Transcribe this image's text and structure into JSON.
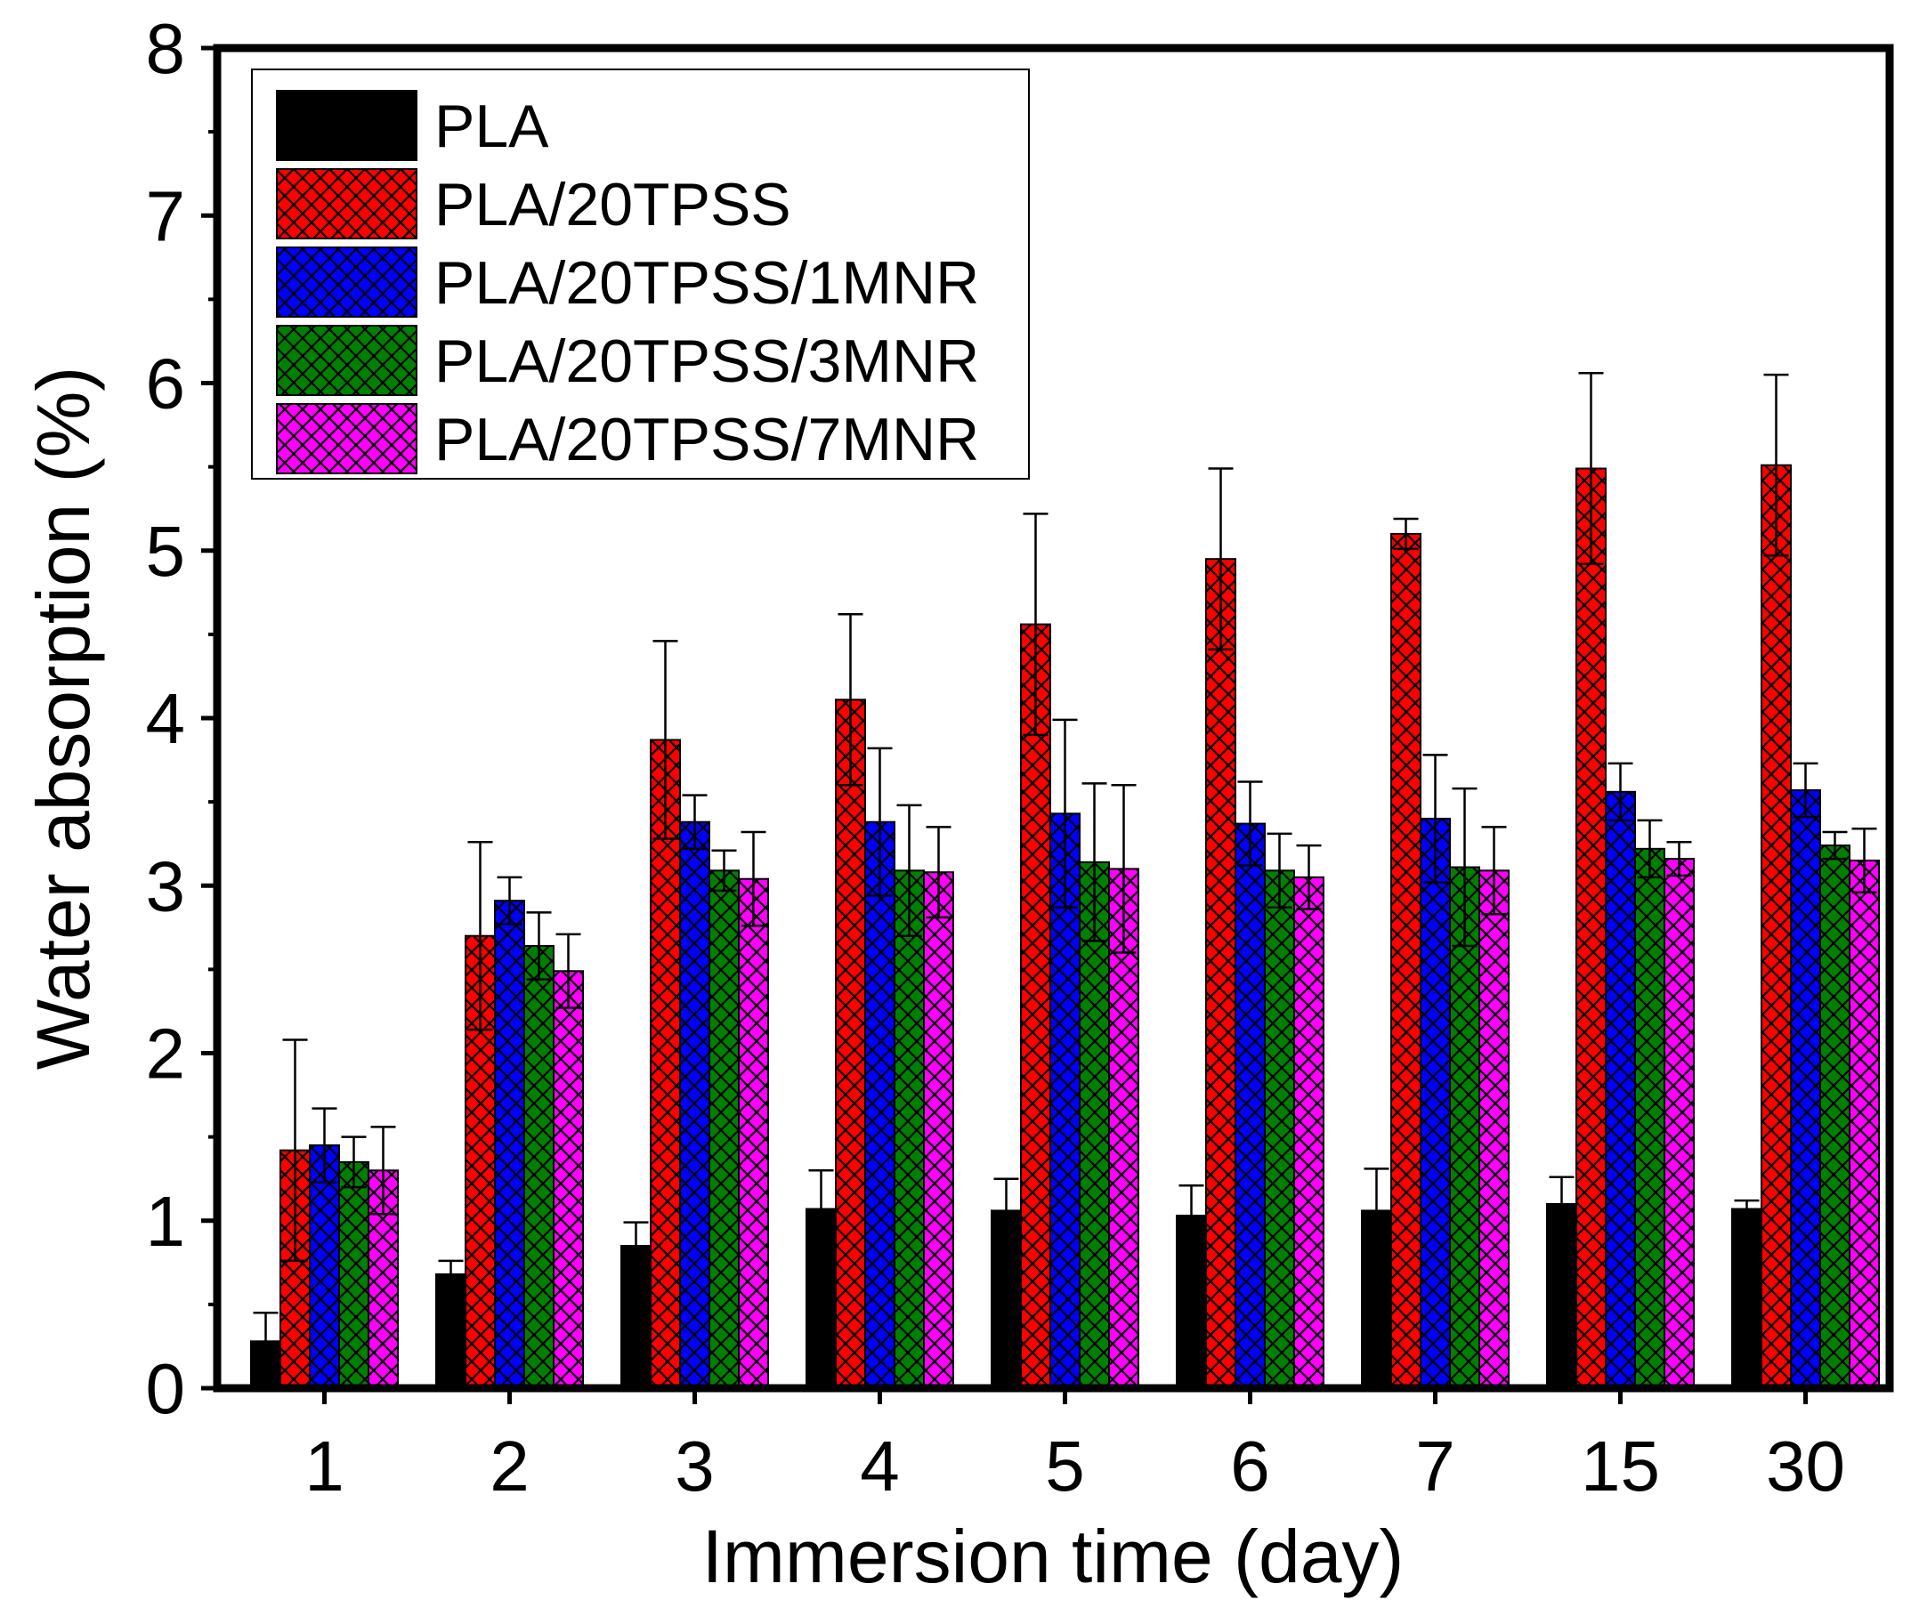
{
  "chart_data": {
    "type": "bar",
    "title": "",
    "xlabel": "Immersion time (day)",
    "ylabel": "Water absorption (%)",
    "ylim": [
      0,
      8
    ],
    "yticks": [
      "0",
      "1",
      "2",
      "3",
      "4",
      "5",
      "6",
      "7",
      "8"
    ],
    "categories": [
      "1",
      "2",
      "3",
      "4",
      "5",
      "6",
      "7",
      "15",
      "30"
    ],
    "legend_position": "top-left",
    "series": [
      {
        "name": "PLA",
        "color": "#000000",
        "hatch": false,
        "values": [
          0.28,
          0.68,
          0.85,
          1.07,
          1.06,
          1.03,
          1.06,
          1.1,
          1.07
        ],
        "errors": [
          0.17,
          0.08,
          0.14,
          0.23,
          0.19,
          0.18,
          0.25,
          0.16,
          0.05
        ]
      },
      {
        "name": "PLA/20TPSS",
        "color": "#ff0000",
        "hatch": true,
        "values": [
          1.42,
          2.7,
          3.87,
          4.11,
          4.56,
          4.95,
          5.1,
          5.49,
          5.51
        ],
        "errors": [
          0.66,
          0.56,
          0.59,
          0.51,
          0.66,
          0.54,
          0.09,
          0.57,
          0.54
        ]
      },
      {
        "name": "PLA/20TPSS/1MNR",
        "color": "#0000ff",
        "hatch": true,
        "values": [
          1.45,
          2.91,
          3.38,
          3.38,
          3.43,
          3.37,
          3.4,
          3.56,
          3.57
        ],
        "errors": [
          0.22,
          0.14,
          0.16,
          0.44,
          0.56,
          0.25,
          0.38,
          0.17,
          0.16
        ]
      },
      {
        "name": "PLA/20TPSS/3MNR",
        "color": "#008000",
        "hatch": true,
        "values": [
          1.35,
          2.64,
          3.09,
          3.09,
          3.14,
          3.09,
          3.11,
          3.22,
          3.24
        ],
        "errors": [
          0.15,
          0.2,
          0.12,
          0.39,
          0.47,
          0.22,
          0.47,
          0.17,
          0.08
        ]
      },
      {
        "name": "PLA/20TPSS/7MNR",
        "color": "#ff00ff",
        "hatch": true,
        "values": [
          1.3,
          2.49,
          3.04,
          3.08,
          3.1,
          3.05,
          3.09,
          3.16,
          3.15
        ],
        "errors": [
          0.26,
          0.22,
          0.28,
          0.27,
          0.5,
          0.19,
          0.26,
          0.1,
          0.19
        ]
      }
    ]
  }
}
